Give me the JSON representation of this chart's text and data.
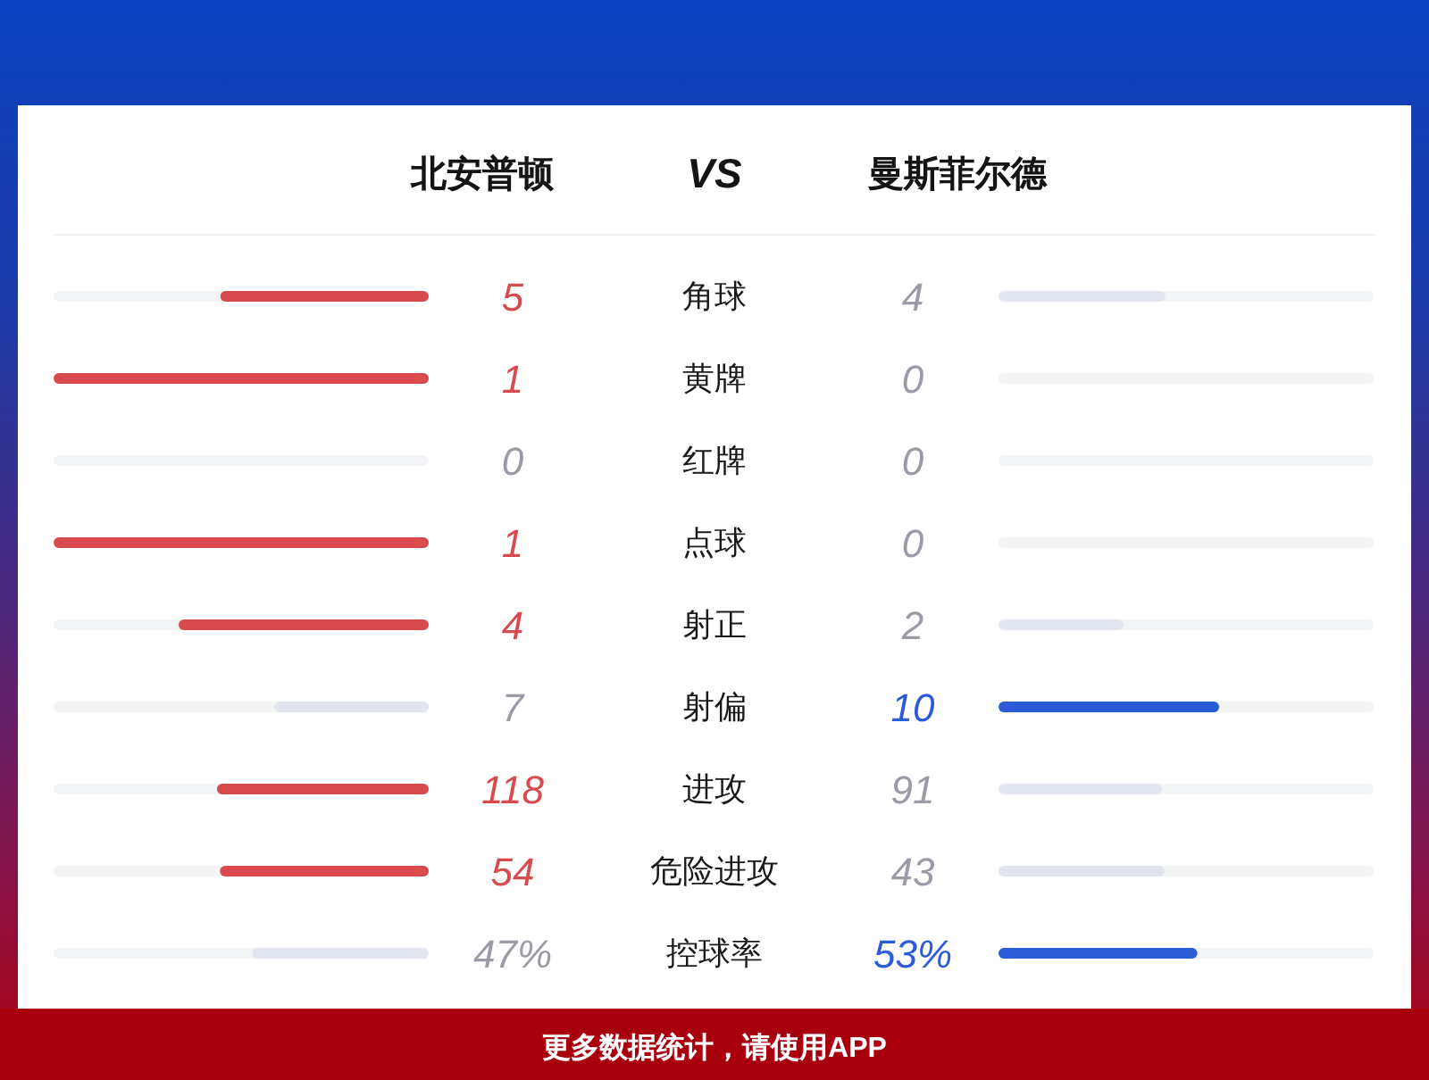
{
  "chart_data": {
    "type": "other",
    "categories": [
      "角球",
      "黄牌",
      "红牌",
      "点球",
      "射正",
      "射偏",
      "进攻",
      "危险进攻",
      "控球率"
    ],
    "series": [
      {
        "name": "北安普顿",
        "colors": [
          "#d94a4f",
          "#d94a4f",
          "#e1e6ee",
          "#d94a4f",
          "#d94a4f",
          "#e1e6ee",
          "#d94a4f",
          "#d94a4f",
          "#e1e6ee"
        ],
        "values": [
          5,
          1,
          0,
          1,
          4,
          7,
          118,
          54,
          47
        ],
        "value_labels": [
          "5",
          "1",
          "0",
          "1",
          "4",
          "7",
          "118",
          "54",
          "47%"
        ]
      },
      {
        "name": "曼斯菲尔德",
        "colors": [
          "#e1e6ee",
          "#e1e6ee",
          "#e1e6ee",
          "#e1e6ee",
          "#e1e6ee",
          "#2c5bd8",
          "#e1e6ee",
          "#e1e6ee",
          "#2c5bd8"
        ],
        "values": [
          4,
          0,
          0,
          0,
          2,
          10,
          91,
          43,
          53
        ],
        "value_labels": [
          "4",
          "0",
          "0",
          "0",
          "2",
          "10",
          "91",
          "43",
          "53%"
        ]
      }
    ],
    "annotations": [
      "VS",
      "更多数据统计，请使用APP"
    ]
  }
}
